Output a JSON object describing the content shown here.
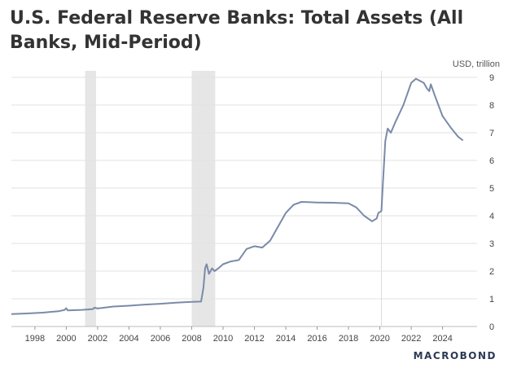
{
  "chart_data": {
    "type": "line",
    "title": "U.S. Federal Reserve Banks: Total Assets (All Banks, Mid-Period)",
    "unit_label": "USD, trillion",
    "xlabel": "",
    "ylabel": "",
    "xlim": [
      1996.5,
      2026.2
    ],
    "ylim": [
      0,
      9
    ],
    "x_ticks": [
      "1998",
      "2000",
      "2002",
      "2004",
      "2006",
      "2008",
      "2010",
      "2012",
      "2014",
      "2016",
      "2018",
      "2020",
      "2022",
      "2024"
    ],
    "y_ticks": [
      "0",
      "1",
      "2",
      "3",
      "4",
      "5",
      "6",
      "7",
      "8",
      "9"
    ],
    "grid": "horizontal",
    "recession_shading": [
      [
        2001.2,
        2001.9
      ],
      [
        2008.0,
        2009.5
      ]
    ],
    "vertical_marker": 2020.1,
    "series": [
      {
        "color": "#7a8aa8",
        "points": [
          [
            1996.5,
            0.45
          ],
          [
            1997.5,
            0.47
          ],
          [
            1998.5,
            0.5
          ],
          [
            1999.5,
            0.55
          ],
          [
            1999.9,
            0.6
          ],
          [
            2000.0,
            0.66
          ],
          [
            2000.1,
            0.58
          ],
          [
            2001.0,
            0.6
          ],
          [
            2001.7,
            0.63
          ],
          [
            2001.8,
            0.68
          ],
          [
            2002.0,
            0.65
          ],
          [
            2003.0,
            0.72
          ],
          [
            2004.0,
            0.75
          ],
          [
            2005.0,
            0.79
          ],
          [
            2006.0,
            0.82
          ],
          [
            2007.0,
            0.86
          ],
          [
            2008.0,
            0.89
          ],
          [
            2008.6,
            0.9
          ],
          [
            2008.75,
            1.4
          ],
          [
            2008.85,
            2.1
          ],
          [
            2008.95,
            2.25
          ],
          [
            2009.1,
            1.9
          ],
          [
            2009.3,
            2.1
          ],
          [
            2009.45,
            2.0
          ],
          [
            2009.7,
            2.1
          ],
          [
            2010.0,
            2.25
          ],
          [
            2010.5,
            2.35
          ],
          [
            2011.0,
            2.4
          ],
          [
            2011.5,
            2.8
          ],
          [
            2012.0,
            2.9
          ],
          [
            2012.5,
            2.85
          ],
          [
            2013.0,
            3.1
          ],
          [
            2013.5,
            3.6
          ],
          [
            2014.0,
            4.1
          ],
          [
            2014.5,
            4.4
          ],
          [
            2015.0,
            4.5
          ],
          [
            2016.0,
            4.48
          ],
          [
            2017.0,
            4.47
          ],
          [
            2018.0,
            4.45
          ],
          [
            2018.5,
            4.3
          ],
          [
            2019.0,
            4.0
          ],
          [
            2019.5,
            3.8
          ],
          [
            2019.8,
            3.9
          ],
          [
            2019.9,
            4.1
          ],
          [
            2020.1,
            4.17
          ],
          [
            2020.2,
            5.2
          ],
          [
            2020.35,
            6.7
          ],
          [
            2020.5,
            7.15
          ],
          [
            2020.7,
            7.0
          ],
          [
            2021.0,
            7.4
          ],
          [
            2021.5,
            8.0
          ],
          [
            2022.0,
            8.8
          ],
          [
            2022.3,
            8.95
          ],
          [
            2022.8,
            8.8
          ],
          [
            2023.0,
            8.6
          ],
          [
            2023.15,
            8.5
          ],
          [
            2023.25,
            8.75
          ],
          [
            2023.5,
            8.35
          ],
          [
            2024.0,
            7.6
          ],
          [
            2024.5,
            7.2
          ],
          [
            2025.0,
            6.85
          ],
          [
            2025.3,
            6.72
          ]
        ]
      }
    ]
  },
  "branding": {
    "logo_text": "MACROBOND"
  }
}
